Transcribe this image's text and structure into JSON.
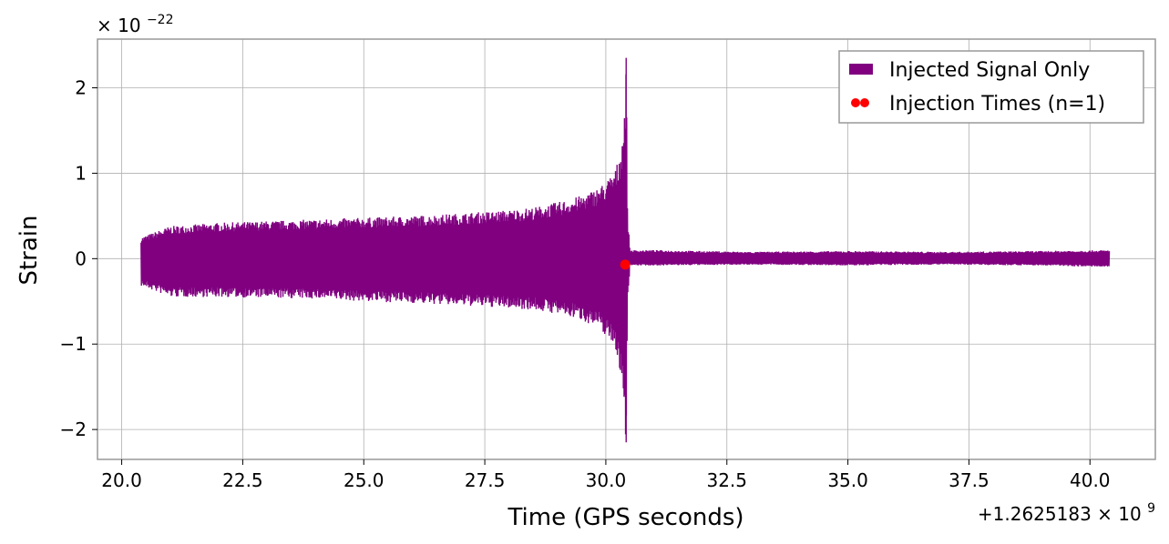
{
  "chart_data": {
    "type": "line",
    "xlabel": "Time (GPS seconds)",
    "ylabel": "Strain",
    "x_offset_label": "+1.2625183 × 10",
    "x_offset_exponent": "9",
    "y_scale_label": "× 10",
    "y_scale_exponent": "−22",
    "xlim": [
      19.5,
      41.35
    ],
    "ylim": [
      -2.35,
      2.57
    ],
    "x_ticks": [
      20.0,
      22.5,
      25.0,
      27.5,
      30.0,
      32.5,
      35.0,
      37.5,
      40.0
    ],
    "x_tick_labels": [
      "20.0",
      "22.5",
      "25.0",
      "27.5",
      "30.0",
      "32.5",
      "35.0",
      "37.5",
      "40.0"
    ],
    "y_ticks": [
      -2,
      -1,
      0,
      1,
      2
    ],
    "y_tick_labels": [
      "−2",
      "−1",
      "0",
      "1",
      "2"
    ],
    "grid": true,
    "legend_position": "top-right",
    "series": [
      {
        "name": "Injected Signal Only",
        "kind": "oscillating strain signal",
        "color": "#800080",
        "envelope": {
          "x": [
            20.4,
            21.0,
            22.0,
            23.0,
            24.0,
            25.0,
            26.0,
            27.0,
            28.0,
            28.5,
            29.0,
            29.5,
            29.8,
            30.0,
            30.2,
            30.3,
            30.38,
            30.42,
            30.45,
            30.5,
            31.0,
            33.0,
            35.0,
            37.0,
            39.0,
            40.4
          ],
          "y_upper": [
            0.25,
            0.38,
            0.42,
            0.44,
            0.46,
            0.48,
            0.5,
            0.53,
            0.57,
            0.6,
            0.66,
            0.74,
            0.82,
            0.9,
            1.05,
            1.25,
            1.7,
            2.35,
            0.5,
            0.1,
            0.1,
            0.08,
            0.09,
            0.08,
            0.09,
            0.1
          ],
          "y_lower": [
            -0.32,
            -0.45,
            -0.45,
            -0.46,
            -0.47,
            -0.5,
            -0.52,
            -0.55,
            -0.58,
            -0.6,
            -0.65,
            -0.72,
            -0.8,
            -0.9,
            -1.05,
            -1.35,
            -1.9,
            -2.15,
            -0.5,
            -0.08,
            -0.08,
            -0.07,
            -0.08,
            -0.07,
            -0.08,
            -0.1
          ]
        }
      },
      {
        "name": "Injection Times (n=1)",
        "kind": "scatter",
        "color": "#ff0000",
        "points": [
          {
            "x": 30.4,
            "y": -0.07
          }
        ]
      }
    ]
  }
}
